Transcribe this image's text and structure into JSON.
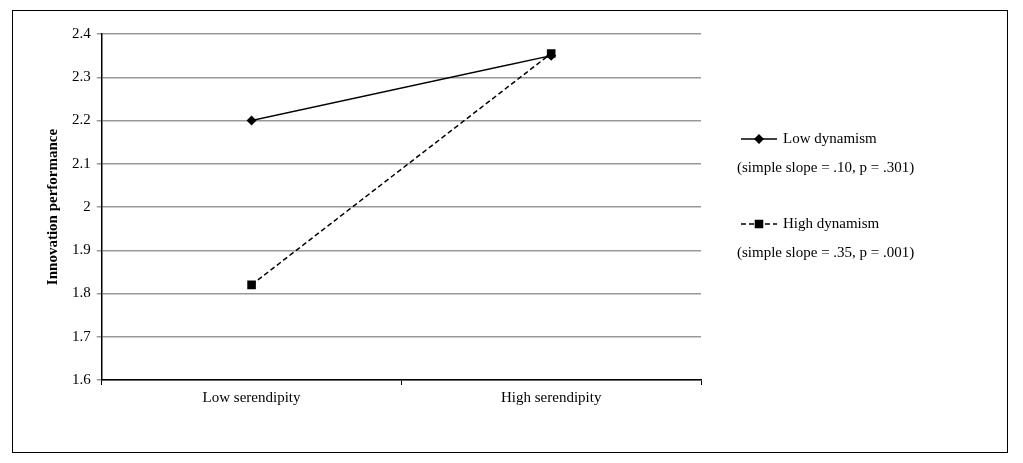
{
  "chart_data": {
    "type": "line",
    "ylabel": "Innovation performance",
    "categories": [
      "Low serendipity",
      "High serendipity"
    ],
    "series": [
      {
        "name": "Low dynamism",
        "color": "#000000",
        "values": [
          2.2,
          2.35
        ],
        "marker": "diamond",
        "line_style": "solid"
      },
      {
        "name": "High dynamism",
        "color": "#000000",
        "values": [
          1.82,
          2.355
        ],
        "marker": "square",
        "line_style": "dashed"
      }
    ],
    "ylim": [
      1.6,
      2.4
    ],
    "yticks": [
      1.6,
      1.7,
      1.8,
      1.9,
      2,
      2.1,
      2.2,
      2.3,
      2.4
    ],
    "grid": "y",
    "legend": "right",
    "annotations": [
      "(simple slope = .10, p = .301)",
      "(simple slope = .35, p = .001)"
    ]
  }
}
